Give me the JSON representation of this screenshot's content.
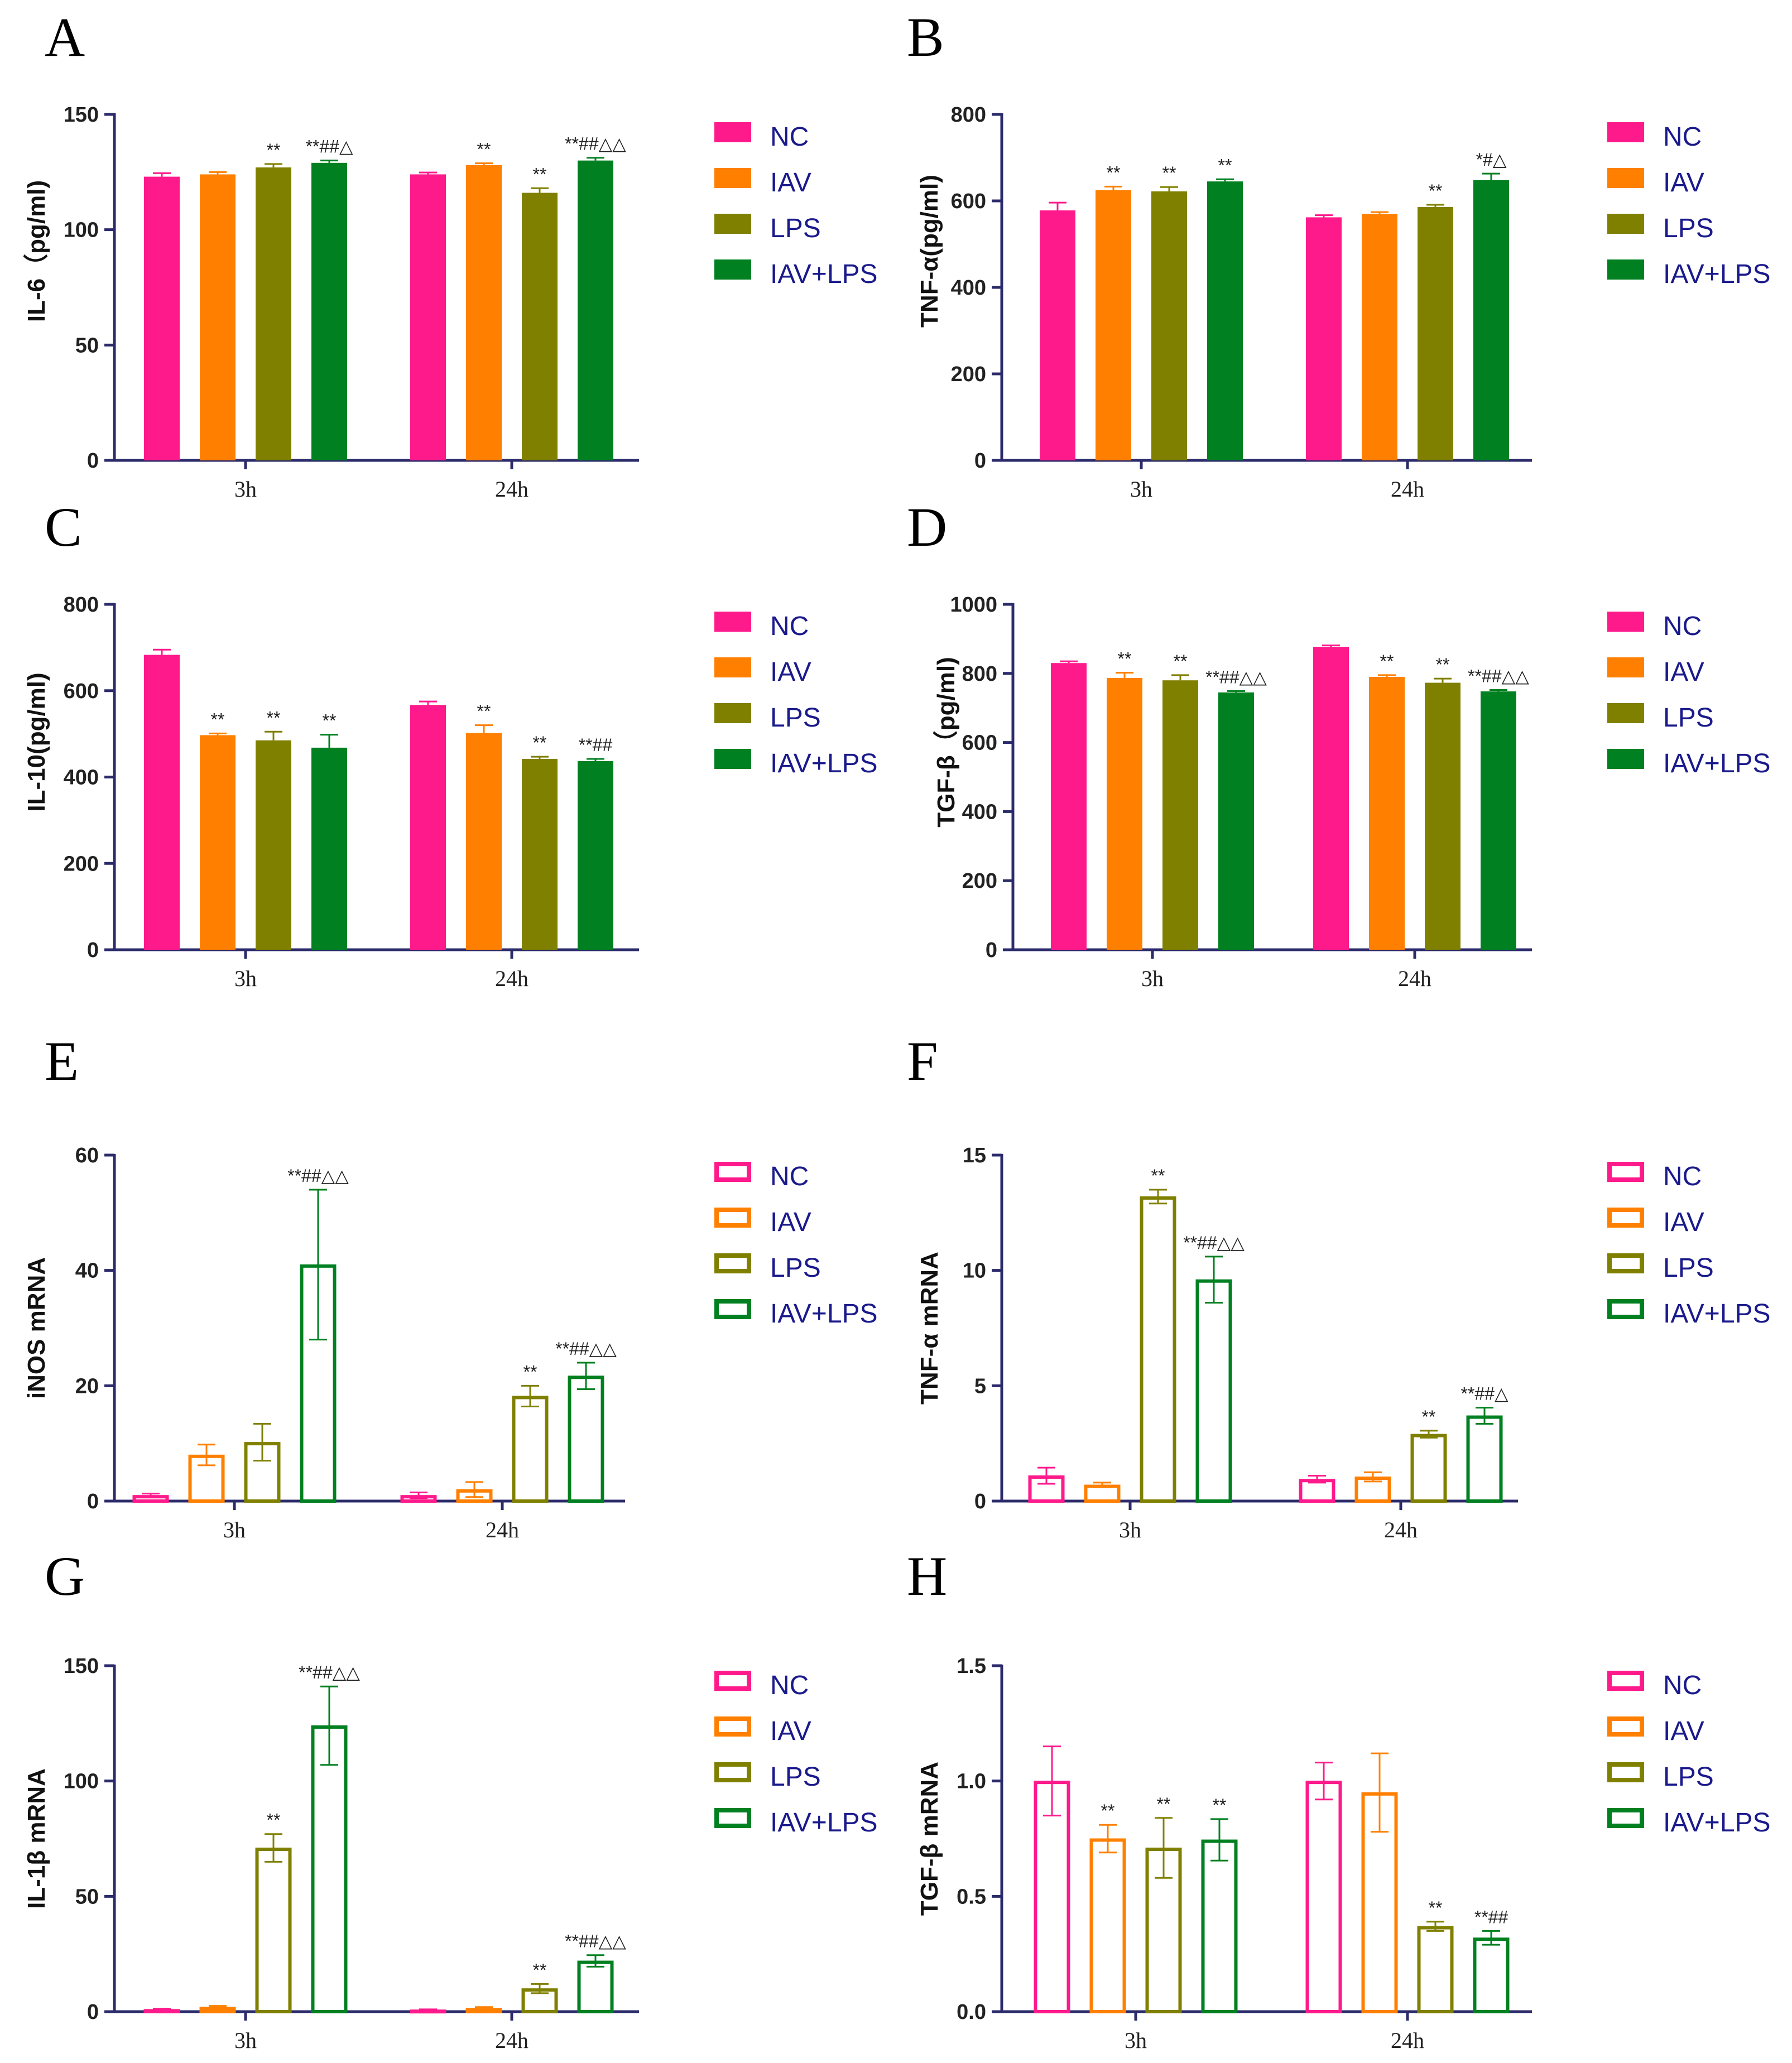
{
  "colors": {
    "NC": "#ff1a8c",
    "IAV": "#ff8000",
    "LPS": "#808000",
    "IAV+LPS": "#008020",
    "axis": "#2b2b6b"
  },
  "chart_data": [
    {
      "panel": "A",
      "type": "bar",
      "style": "filled",
      "ylabel": "IL-6（pg/ml)",
      "ylim": [
        0,
        150
      ],
      "yticks": [
        0,
        50,
        100,
        150
      ],
      "categories": [
        "3h",
        "24h"
      ],
      "series": [
        {
          "name": "NC",
          "values": [
            123,
            124
          ],
          "errors": [
            1.5,
            0.8
          ],
          "annotations": [
            "",
            ""
          ]
        },
        {
          "name": "IAV",
          "values": [
            124,
            128
          ],
          "errors": [
            1,
            0.8
          ],
          "annotations": [
            "",
            "**"
          ]
        },
        {
          "name": "LPS",
          "values": [
            127,
            116
          ],
          "errors": [
            1.5,
            2
          ],
          "annotations": [
            "**",
            "**"
          ]
        },
        {
          "name": "IAV+LPS",
          "values": [
            129,
            130
          ],
          "errors": [
            1,
            1.2
          ],
          "annotations": [
            "**##△",
            "**##△△"
          ]
        }
      ]
    },
    {
      "panel": "B",
      "type": "bar",
      "style": "filled",
      "ylabel": "TNF-α(pg/ml)",
      "ylim": [
        0,
        800
      ],
      "yticks": [
        0,
        200,
        400,
        600,
        800
      ],
      "categories": [
        "3h",
        "24h"
      ],
      "series": [
        {
          "name": "NC",
          "values": [
            578,
            562
          ],
          "errors": [
            18,
            5
          ],
          "annotations": [
            "",
            ""
          ]
        },
        {
          "name": "IAV",
          "values": [
            625,
            570
          ],
          "errors": [
            8,
            4
          ],
          "annotations": [
            "**",
            ""
          ]
        },
        {
          "name": "LPS",
          "values": [
            622,
            586
          ],
          "errors": [
            10,
            5
          ],
          "annotations": [
            "**",
            "**"
          ]
        },
        {
          "name": "IAV+LPS",
          "values": [
            645,
            648
          ],
          "errors": [
            5,
            15
          ],
          "annotations": [
            "**",
            "*#△"
          ]
        }
      ]
    },
    {
      "panel": "C",
      "type": "bar",
      "style": "filled",
      "ylabel": "IL-10(pg/ml)",
      "ylim": [
        0,
        800
      ],
      "yticks": [
        0,
        200,
        400,
        600,
        800
      ],
      "categories": [
        "3h",
        "24h"
      ],
      "series": [
        {
          "name": "NC",
          "values": [
            683,
            567
          ],
          "errors": [
            12,
            8
          ],
          "annotations": [
            "",
            ""
          ]
        },
        {
          "name": "IAV",
          "values": [
            497,
            502
          ],
          "errors": [
            4,
            18
          ],
          "annotations": [
            "**",
            "**"
          ]
        },
        {
          "name": "LPS",
          "values": [
            485,
            442
          ],
          "errors": [
            20,
            5
          ],
          "annotations": [
            "**",
            "**"
          ]
        },
        {
          "name": "IAV+LPS",
          "values": [
            468,
            437
          ],
          "errors": [
            30,
            5
          ],
          "annotations": [
            "**",
            "**##"
          ]
        }
      ]
    },
    {
      "panel": "D",
      "type": "bar",
      "style": "filled",
      "ylabel": "TGF-β（pg/ml)",
      "ylim": [
        0,
        1000
      ],
      "yticks": [
        0,
        200,
        400,
        600,
        800,
        1000
      ],
      "categories": [
        "3h",
        "24h"
      ],
      "series": [
        {
          "name": "NC",
          "values": [
            830,
            877
          ],
          "errors": [
            5,
            4
          ],
          "annotations": [
            "",
            ""
          ]
        },
        {
          "name": "IAV",
          "values": [
            787,
            790
          ],
          "errors": [
            15,
            5
          ],
          "annotations": [
            "**",
            "**"
          ]
        },
        {
          "name": "LPS",
          "values": [
            780,
            773
          ],
          "errors": [
            15,
            12
          ],
          "annotations": [
            "**",
            "**"
          ]
        },
        {
          "name": "IAV+LPS",
          "values": [
            745,
            748
          ],
          "errors": [
            4,
            4
          ],
          "annotations": [
            "**##△△",
            "**##△△"
          ]
        }
      ]
    },
    {
      "panel": "E",
      "type": "bar",
      "style": "hollow",
      "ylabel": "iNOS mRNA",
      "ylim": [
        0,
        60
      ],
      "yticks": [
        0,
        20,
        40,
        60
      ],
      "categories": [
        "3h",
        "24h"
      ],
      "series": [
        {
          "name": "NC",
          "values": [
            1,
            1
          ],
          "errors": [
            0.3,
            0.5
          ],
          "annotations": [
            "",
            ""
          ]
        },
        {
          "name": "IAV",
          "values": [
            8,
            2
          ],
          "errors": [
            1.8,
            1.3
          ],
          "annotations": [
            "",
            ""
          ]
        },
        {
          "name": "LPS",
          "values": [
            10.2,
            18.2
          ],
          "errors": [
            3.2,
            1.8
          ],
          "annotations": [
            "",
            "**"
          ]
        },
        {
          "name": "IAV+LPS",
          "values": [
            41,
            21.7
          ],
          "errors": [
            13,
            2.3
          ],
          "annotations": [
            "**##△△",
            "**##△△"
          ]
        }
      ]
    },
    {
      "panel": "F",
      "type": "bar",
      "style": "hollow",
      "ylabel": "TNF-α  mRNA",
      "ylim": [
        0,
        15
      ],
      "yticks": [
        0,
        5,
        10,
        15
      ],
      "categories": [
        "3h",
        "24h"
      ],
      "series": [
        {
          "name": "NC",
          "values": [
            1.1,
            0.95
          ],
          "errors": [
            0.35,
            0.15
          ],
          "annotations": [
            "",
            ""
          ]
        },
        {
          "name": "IAV",
          "values": [
            0.7,
            1.05
          ],
          "errors": [
            0.1,
            0.2
          ],
          "annotations": [
            "",
            ""
          ]
        },
        {
          "name": "LPS",
          "values": [
            13.2,
            2.9
          ],
          "errors": [
            0.3,
            0.15
          ],
          "annotations": [
            "**",
            "**"
          ]
        },
        {
          "name": "IAV+LPS",
          "values": [
            9.6,
            3.7
          ],
          "errors": [
            1.0,
            0.35
          ],
          "annotations": [
            "**##△△",
            "**##△"
          ]
        }
      ]
    },
    {
      "panel": "G",
      "type": "bar",
      "style": "hollow",
      "ylabel": "IL-1β mRNA",
      "ylim": [
        0,
        150
      ],
      "yticks": [
        0,
        50,
        100,
        150
      ],
      "categories": [
        "3h",
        "24h"
      ],
      "series": [
        {
          "name": "NC",
          "values": [
            1,
            0.8
          ],
          "errors": [
            0.3,
            0.2
          ],
          "annotations": [
            "",
            ""
          ]
        },
        {
          "name": "IAV",
          "values": [
            2,
            1.5
          ],
          "errors": [
            0.5,
            0.5
          ],
          "annotations": [
            "",
            ""
          ]
        },
        {
          "name": "LPS",
          "values": [
            71,
            10
          ],
          "errors": [
            6,
            2
          ],
          "annotations": [
            "**",
            "**"
          ]
        },
        {
          "name": "IAV+LPS",
          "values": [
            124,
            22
          ],
          "errors": [
            17,
            2.5
          ],
          "annotations": [
            "**##△△",
            "**##△△"
          ]
        }
      ]
    },
    {
      "panel": "H",
      "type": "bar",
      "style": "hollow",
      "ylabel": "TGF-β  mRNA",
      "ylim": [
        0,
        1.5
      ],
      "yticks": [
        "0.0",
        "0.5",
        "1.0",
        "1.5"
      ],
      "categories": [
        "3h",
        "24h"
      ],
      "series": [
        {
          "name": "NC",
          "values": [
            1.0,
            1.0
          ],
          "errors": [
            0.15,
            0.08
          ],
          "annotations": [
            "",
            ""
          ]
        },
        {
          "name": "IAV",
          "values": [
            0.75,
            0.95
          ],
          "errors": [
            0.06,
            0.17
          ],
          "annotations": [
            "**",
            ""
          ]
        },
        {
          "name": "LPS",
          "values": [
            0.71,
            0.37
          ],
          "errors": [
            0.13,
            0.02
          ],
          "annotations": [
            "**",
            "**"
          ]
        },
        {
          "name": "IAV+LPS",
          "values": [
            0.745,
            0.32
          ],
          "errors": [
            0.09,
            0.03
          ],
          "annotations": [
            "**",
            "**##"
          ]
        }
      ]
    }
  ]
}
